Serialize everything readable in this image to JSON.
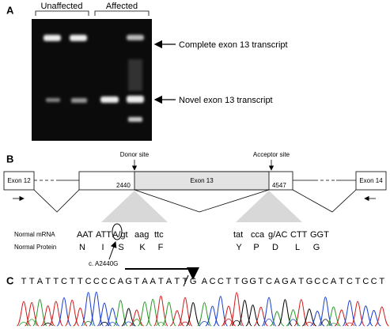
{
  "panels": {
    "a": {
      "label": "A",
      "groups": [
        "Unaffected",
        "Affected"
      ],
      "bands": [
        "Complete exon 13 transcript",
        "Novel exon 13 transcript"
      ]
    },
    "b": {
      "label": "B",
      "exons": [
        "Exon 12",
        "Exon 13",
        "Exon 14"
      ],
      "positions": [
        "2440",
        "4547"
      ],
      "sites": [
        "Donor site",
        "Acceptor site"
      ],
      "rows": [
        "Normal mRNA",
        "Normal Protein"
      ],
      "mrna": [
        [
          "AAT",
          "ATT",
          "A/gt",
          "aag",
          "ttc"
        ],
        [
          "tat",
          "cca",
          "g/AC",
          "CTT",
          "GGT"
        ]
      ],
      "protein": [
        [
          "N",
          "I",
          "S",
          "K",
          "F"
        ],
        [
          "Y",
          "P",
          "D",
          "L",
          "G"
        ]
      ],
      "mutation": "c. A2440G"
    },
    "c": {
      "label": "C",
      "sequence": [
        "T",
        "T",
        "A",
        "T",
        "T",
        "C",
        "T",
        "T",
        "C",
        "C",
        "C",
        "C",
        "A",
        "G",
        "T",
        "A",
        "A",
        "T",
        "A",
        "T",
        "T",
        "G",
        "A",
        "C",
        "C",
        "T",
        "T",
        "G",
        "G",
        "T",
        "C",
        "A",
        "G",
        "A",
        "T",
        "G",
        "C",
        "C",
        "A",
        "T",
        "C",
        "T",
        "C",
        "C",
        "T"
      ]
    }
  }
}
